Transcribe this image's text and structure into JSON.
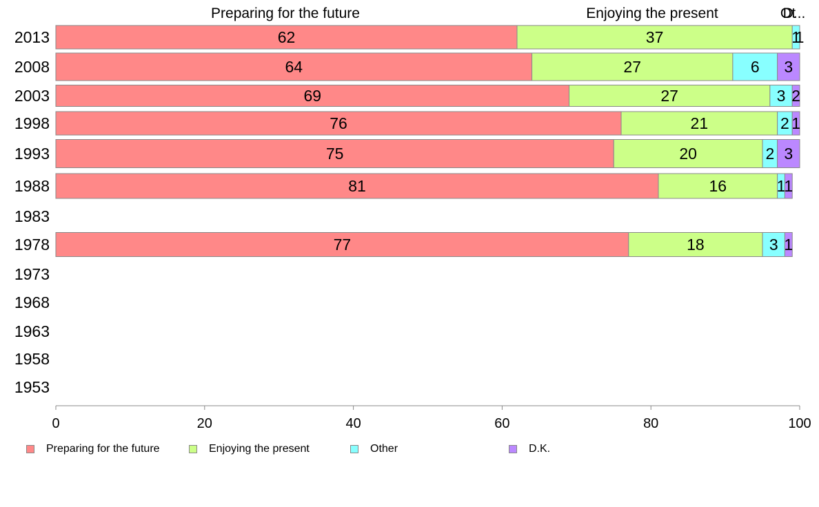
{
  "chart_data": {
    "type": "bar",
    "orientation": "horizontal",
    "stacked": true,
    "categories": [
      "2013",
      "2008",
      "2003",
      "1998",
      "1993",
      "1988",
      "1983",
      "1978",
      "1973",
      "1968",
      "1963",
      "1958",
      "1953"
    ],
    "series": [
      {
        "name": "Preparing for the future",
        "color": "#ff8888",
        "values": [
          62,
          64,
          69,
          76,
          75,
          81,
          null,
          77,
          null,
          null,
          null,
          null,
          null
        ]
      },
      {
        "name": "Enjoying the present",
        "color": "#ccff88",
        "values": [
          37,
          27,
          27,
          21,
          20,
          16,
          null,
          18,
          null,
          null,
          null,
          null,
          null
        ]
      },
      {
        "name": "Other",
        "color": "#88ffff",
        "values": [
          1,
          6,
          3,
          2,
          2,
          1,
          null,
          3,
          null,
          null,
          null,
          null,
          null
        ]
      },
      {
        "name": "D.K.",
        "color": "#bb88ff",
        "values": [
          1,
          3,
          2,
          1,
          3,
          1,
          null,
          1,
          null,
          null,
          null,
          null,
          null
        ]
      }
    ],
    "top_labels": [
      "Preparing for the future",
      "Enjoying the present",
      "Ot",
      "D..."
    ],
    "xlim": [
      0,
      100
    ],
    "xticks": [
      0,
      20,
      40,
      60,
      80,
      100
    ],
    "xlabel": "",
    "ylabel": "",
    "title": "",
    "grid": false,
    "legend_position": "bottom"
  }
}
